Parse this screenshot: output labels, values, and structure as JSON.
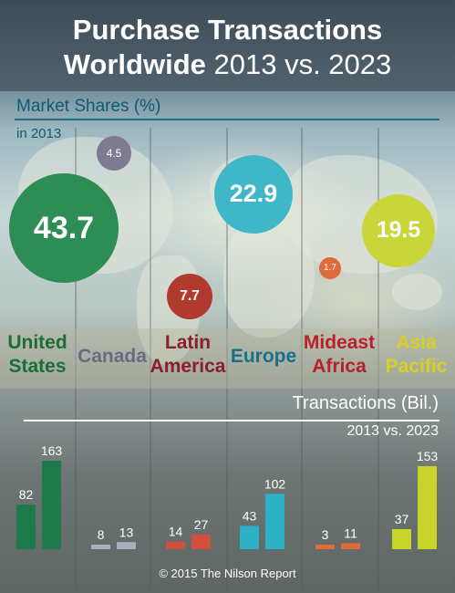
{
  "title": {
    "line1": "Purchase Transactions",
    "line2_bold": "Worldwide",
    "line2_normal": "2013 vs. 2023"
  },
  "market_shares": {
    "heading": "Market Shares (%)",
    "subheading": "in 2013"
  },
  "transactions": {
    "heading": "Transactions (Bil.)",
    "subheading": "2013 vs. 2023"
  },
  "copyright": "© 2015 The Nilson Report",
  "chart_data": [
    {
      "type": "bubble",
      "title": "Market Shares (%)",
      "subtitle": "in 2013",
      "categories": [
        "United States",
        "Canada",
        "Latin America",
        "Europe",
        "Mideast Africa",
        "Asia Pacific"
      ],
      "values": [
        43.7,
        4.5,
        7.7,
        22.9,
        1.7,
        19.5
      ],
      "labels": [
        "43.7",
        "4.5",
        "7.7",
        "22.9",
        "1.7",
        "19.5"
      ],
      "colors": [
        "#2e8c55",
        "#7f7a8f",
        "#b13a2f",
        "#3fb7c9",
        "#df6b3a",
        "#c8d63a"
      ]
    },
    {
      "type": "bar",
      "title": "Transactions (Bil.)",
      "subtitle": "2013 vs. 2023",
      "categories": [
        "United States",
        "Canada",
        "Latin America",
        "Europe",
        "Mideast Africa",
        "Asia Pacific"
      ],
      "series": [
        {
          "name": "2013",
          "values": [
            82,
            8,
            14,
            43,
            3,
            37
          ]
        },
        {
          "name": "2023",
          "values": [
            163,
            13,
            27,
            102,
            11,
            153
          ]
        }
      ],
      "value_labels": [
        [
          "82",
          "8",
          "14",
          "43",
          "3",
          "37"
        ],
        [
          "163",
          "13",
          "27",
          "102",
          "11",
          "153"
        ]
      ],
      "colors": [
        "#1e7a4a",
        "#a8b0bc",
        "#d0503d",
        "#2bb2c6",
        "#df6b3a",
        "#c8d42a"
      ],
      "region_label_lines": [
        [
          "United",
          "States"
        ],
        [
          "Canada"
        ],
        [
          "Latin",
          "America"
        ],
        [
          "Europe"
        ],
        [
          "Mideast",
          "Africa"
        ],
        [
          "Asia",
          "Pacific"
        ]
      ],
      "region_label_colors": [
        "#1a6e3a",
        "#6b6a82",
        "#8c1e2c",
        "#17708a",
        "#b8202c",
        "#d8d020"
      ]
    }
  ]
}
